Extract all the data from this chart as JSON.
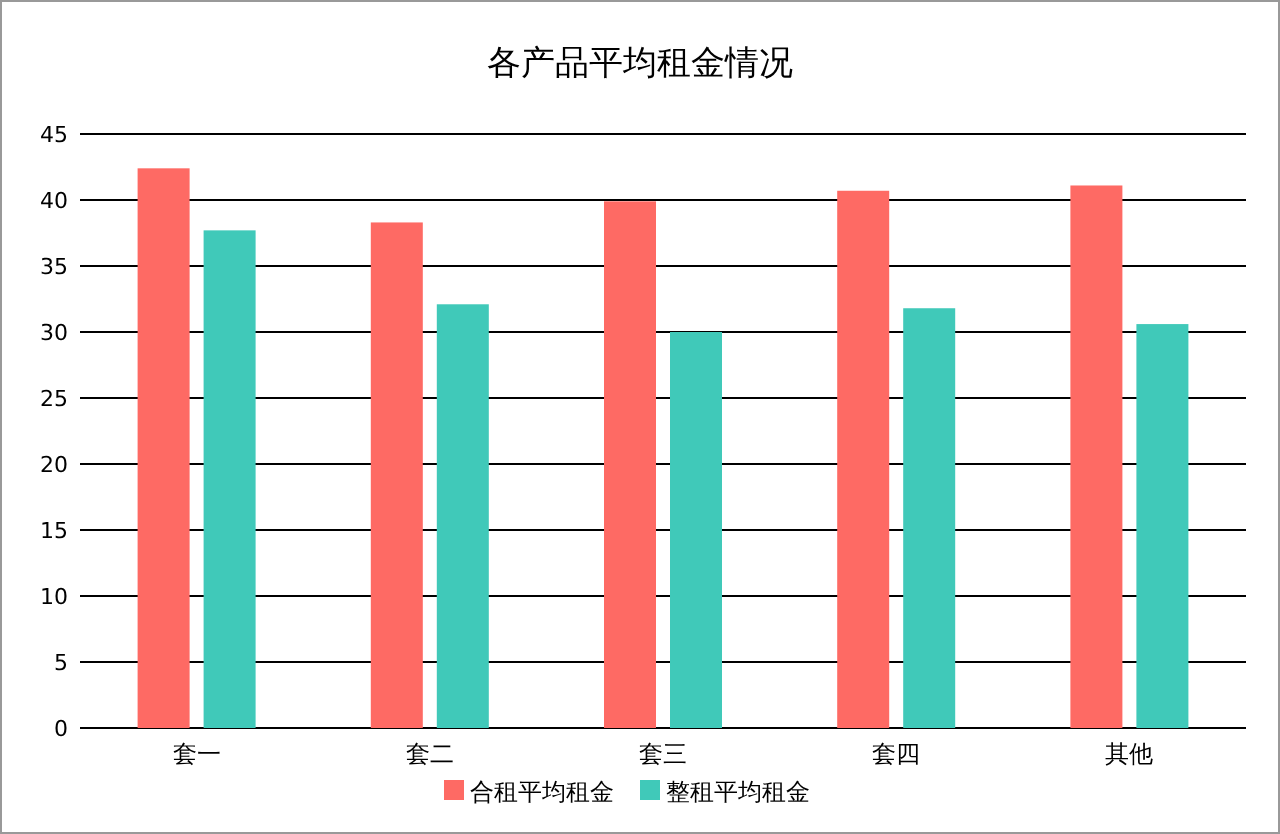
{
  "chart_data": {
    "type": "bar",
    "title": "各产品平均租金情况",
    "categories": [
      "套一",
      "套二",
      "套三",
      "套四",
      "其他"
    ],
    "series": [
      {
        "name": "合租平均租金",
        "color": "#fe6a64",
        "values": [
          42.4,
          38.3,
          39.9,
          40.7,
          41.1
        ]
      },
      {
        "name": "整租平均租金",
        "color": "#40c9b9",
        "values": [
          37.7,
          32.1,
          30.0,
          31.8,
          30.6
        ]
      }
    ],
    "ylim": [
      0,
      45
    ],
    "yticks": [
      0,
      5,
      10,
      15,
      20,
      25,
      30,
      35,
      40,
      45
    ],
    "grid": "y",
    "legend": "bottom"
  }
}
